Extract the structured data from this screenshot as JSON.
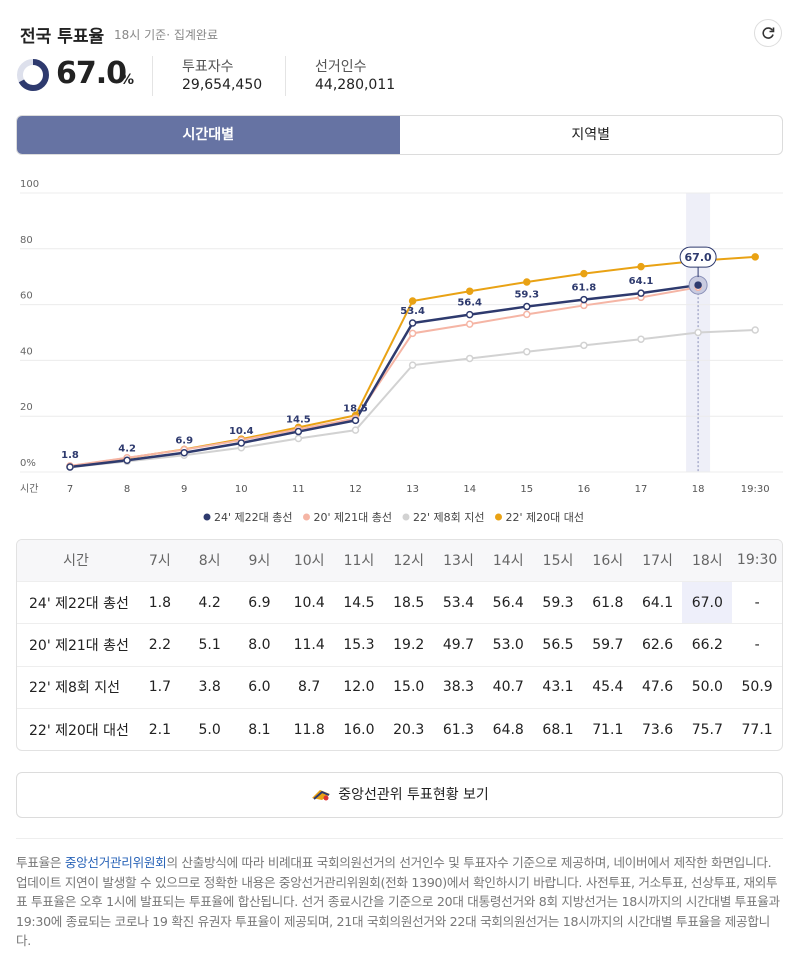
{
  "header": {
    "title": "전국 투표율",
    "subtitle": "18시 기준· 집계완료",
    "rate": 67,
    "rate_label": "67.0",
    "rate_unit": "%",
    "stats": [
      {
        "label": "투표자수",
        "value": "29,654,450"
      },
      {
        "label": "선거인수",
        "value": "44,280,011"
      }
    ]
  },
  "tabs": [
    "시간대별",
    "지역별"
  ],
  "chart_data": {
    "type": "line",
    "x_label": "시간",
    "categories": [
      "7",
      "8",
      "9",
      "10",
      "11",
      "12",
      "13",
      "14",
      "15",
      "16",
      "17",
      "18",
      "19:30"
    ],
    "ylim": [
      0,
      100
    ],
    "yticks": [
      {
        "value": 0,
        "label": "0%"
      },
      20,
      40,
      60,
      80,
      100
    ],
    "grid": true,
    "highlight_index": 11,
    "series": [
      {
        "name": "24' 제22대 총선",
        "color": "#2e3a6e",
        "values": [
          1.8,
          4.2,
          6.9,
          10.4,
          14.5,
          18.5,
          53.4,
          56.4,
          59.3,
          61.8,
          64.1,
          67.0,
          null
        ],
        "value_labels": [
          "1.8",
          "4.2",
          "6.9",
          "10.4",
          "14.5",
          "18.5",
          "53.4",
          "56.4",
          "59.3",
          "61.8",
          "64.1",
          "67.0",
          null
        ]
      },
      {
        "name": "20' 제21대 총선",
        "color": "#f5b5a5",
        "values": [
          2.2,
          5.1,
          8.0,
          11.4,
          15.3,
          19.2,
          49.7,
          53.0,
          56.5,
          59.7,
          62.6,
          66.2,
          null
        ]
      },
      {
        "name": "22' 제8회 지선",
        "color": "#d2d2d2",
        "values": [
          1.7,
          3.8,
          6.0,
          8.7,
          12.0,
          15.0,
          38.3,
          40.7,
          43.1,
          45.4,
          47.6,
          50.0,
          50.9
        ]
      },
      {
        "name": "22' 제20대 대선",
        "color": "#e9a214",
        "values": [
          2.1,
          5.0,
          8.1,
          11.8,
          16.0,
          20.3,
          61.3,
          64.8,
          68.1,
          71.1,
          73.6,
          75.7,
          77.1
        ]
      }
    ]
  },
  "table": {
    "header": [
      "시간",
      "7시",
      "8시",
      "9시",
      "10시",
      "11시",
      "12시",
      "13시",
      "14시",
      "15시",
      "16시",
      "17시",
      "18시",
      "19:30"
    ],
    "rows": [
      [
        "24' 제22대 총선",
        "1.8",
        "4.2",
        "6.9",
        "10.4",
        "14.5",
        "18.5",
        "53.4",
        "56.4",
        "59.3",
        "61.8",
        "64.1",
        "67.0",
        "-"
      ],
      [
        "20' 제21대 총선",
        "2.2",
        "5.1",
        "8.0",
        "11.4",
        "15.3",
        "19.2",
        "49.7",
        "53.0",
        "56.5",
        "59.7",
        "62.6",
        "66.2",
        "-"
      ],
      [
        "22' 제8회 지선",
        "1.7",
        "3.8",
        "6.0",
        "8.7",
        "12.0",
        "15.0",
        "38.3",
        "40.7",
        "43.1",
        "45.4",
        "47.6",
        "50.0",
        "50.9"
      ],
      [
        "22' 제20대 대선",
        "2.1",
        "5.0",
        "8.1",
        "11.8",
        "16.0",
        "20.3",
        "61.3",
        "64.8",
        "68.1",
        "71.1",
        "73.6",
        "75.7",
        "77.1"
      ]
    ]
  },
  "button": "중앙선관위 투표현황 보기",
  "notice": {
    "before": "투표율은 ",
    "link": "중앙선거관리위원회",
    "after": "의 산출방식에 따라 비례대표 국회의원선거의 선거인수 및 투표자수 기준으로 제공하며, 네이버에서 제작한 화면입니다. 업데이트 지연이 발생할 수 있으므로 정확한 내용은 중앙선거관리위원회(전화 1390)에서 확인하시기 바랍니다. 사전투표, 거소투표, 선상투표, 재외투표 투표율은 오후 1시에 발표되는 투표율에 합산됩니다. 선거 종료시간을 기준으로 20대 대통령선거와 8회 지방선거는 18시까지의 시간대별 투표율과 19:30에 종료되는 코로나 19 확진 유권자 투표율이 제공되며, 21대 국회의원선거와 22대 국회의원선거는 18시까지의 시간대별 투표율을 제공합니다."
  }
}
